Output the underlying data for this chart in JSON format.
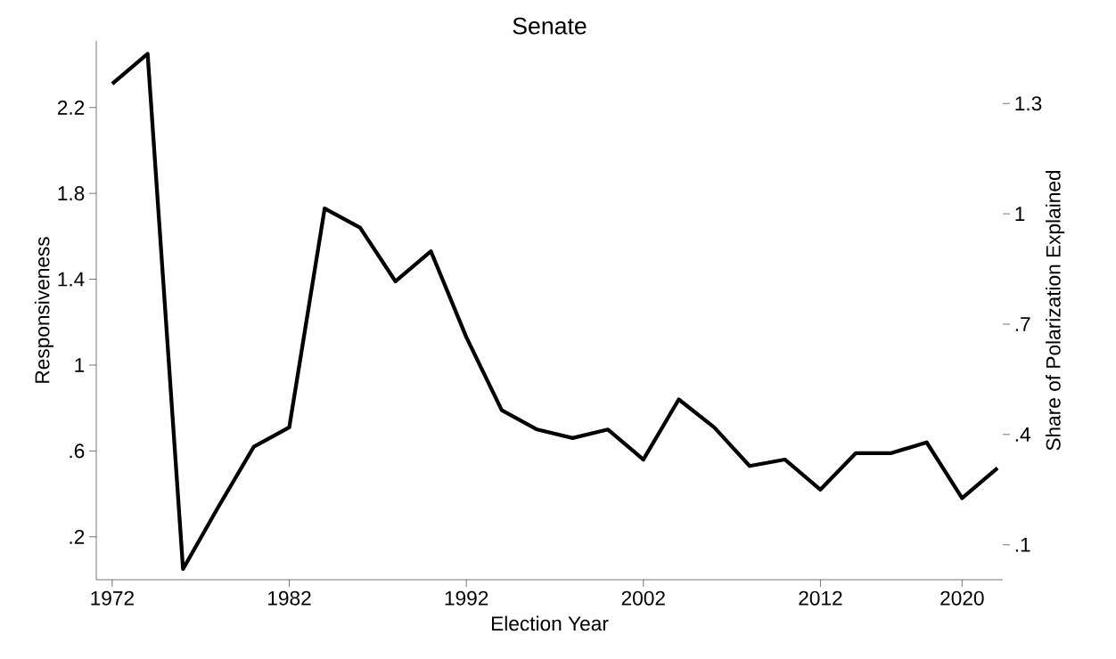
{
  "chart_data": {
    "type": "line",
    "title": "Senate",
    "xlabel": "Election Year",
    "ylabel": "Responsiveness",
    "y2label": "Share of Polarization Explained",
    "x": [
      1972,
      1974,
      1976,
      1978,
      1980,
      1982,
      1984,
      1986,
      1988,
      1990,
      1992,
      1994,
      1996,
      1998,
      2000,
      2002,
      2004,
      2006,
      2008,
      2010,
      2012,
      2014,
      2016,
      2018,
      2020,
      2022
    ],
    "series": [
      {
        "color": "#000000",
        "values": [
          2.31,
          2.45,
          0.05,
          0.34,
          0.62,
          0.71,
          1.73,
          1.64,
          1.39,
          1.53,
          1.13,
          0.79,
          0.7,
          0.66,
          0.7,
          0.56,
          0.84,
          0.71,
          0.53,
          0.56,
          0.42,
          0.59,
          0.59,
          0.64,
          0.38,
          0.52
        ]
      }
    ],
    "xlim": [
      1971.1,
      2022.3
    ],
    "ylim": [
      0,
      2.51
    ],
    "y2lim": [
      0.005,
      1.47
    ],
    "xticks": [
      1972,
      1982,
      1992,
      2002,
      2012,
      2020
    ],
    "yticks": [
      {
        "value": 0.2,
        "label": ".2"
      },
      {
        "value": 0.6,
        "label": ".6"
      },
      1,
      1.4,
      1.8,
      2.2
    ],
    "y2ticks": [
      {
        "value": 0.1,
        "label": ".1"
      },
      {
        "value": 0.4,
        "label": ".4"
      },
      {
        "value": 0.7,
        "label": ".7"
      },
      1,
      1.3
    ],
    "grid": false,
    "marker": "none",
    "line_style": "solid"
  }
}
